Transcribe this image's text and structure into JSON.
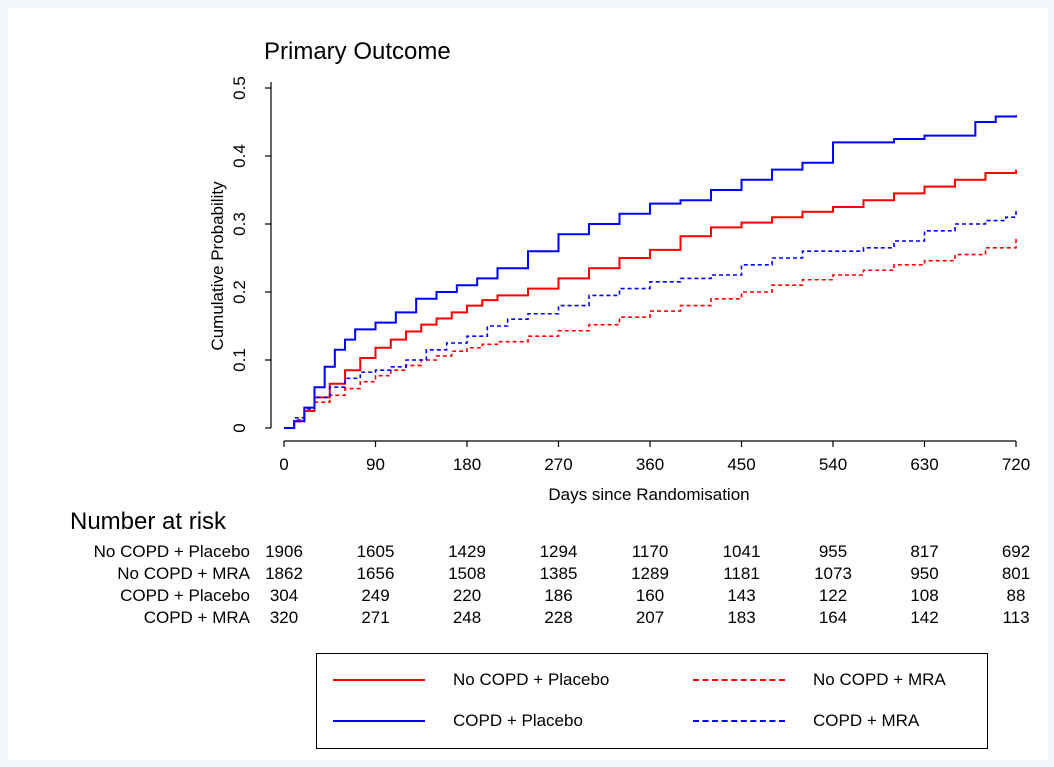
{
  "chart_data": {
    "type": "line",
    "title": "Primary Outcome",
    "xlabel": "Days since Randomisation",
    "ylabel": "Cumulative Probability",
    "xlim": [
      0,
      720
    ],
    "ylim": [
      0,
      0.5
    ],
    "xticks": [
      0,
      90,
      180,
      270,
      360,
      450,
      540,
      630,
      720
    ],
    "yticks": [
      0,
      0.1,
      0.2,
      0.3,
      0.4,
      0.5
    ],
    "ytick_labels": [
      "0",
      "0.1",
      "0.2",
      "0.3",
      "0.4",
      "0.5"
    ],
    "grid": false,
    "legend_position": "bottom",
    "series": [
      {
        "name": "No COPD + Placebo",
        "color": "#ff0000",
        "dashed": false,
        "x": [
          0,
          10,
          20,
          30,
          45,
          60,
          75,
          90,
          105,
          120,
          135,
          150,
          165,
          180,
          195,
          210,
          240,
          270,
          300,
          330,
          360,
          390,
          420,
          450,
          480,
          510,
          540,
          570,
          600,
          630,
          660,
          690,
          720
        ],
        "y": [
          0,
          0.01,
          0.025,
          0.045,
          0.065,
          0.085,
          0.103,
          0.118,
          0.13,
          0.142,
          0.152,
          0.161,
          0.17,
          0.18,
          0.188,
          0.195,
          0.205,
          0.22,
          0.235,
          0.25,
          0.262,
          0.282,
          0.295,
          0.302,
          0.31,
          0.318,
          0.325,
          0.335,
          0.345,
          0.355,
          0.365,
          0.375,
          0.38
        ]
      },
      {
        "name": "No COPD + MRA",
        "color": "#ff0000",
        "dashed": true,
        "x": [
          0,
          10,
          20,
          30,
          45,
          60,
          75,
          90,
          105,
          120,
          135,
          150,
          165,
          180,
          195,
          210,
          240,
          270,
          300,
          330,
          360,
          390,
          420,
          450,
          480,
          510,
          540,
          570,
          600,
          630,
          660,
          690,
          720
        ],
        "y": [
          0,
          0.012,
          0.025,
          0.038,
          0.048,
          0.058,
          0.068,
          0.077,
          0.085,
          0.092,
          0.1,
          0.106,
          0.113,
          0.118,
          0.123,
          0.127,
          0.135,
          0.143,
          0.152,
          0.163,
          0.172,
          0.18,
          0.19,
          0.2,
          0.21,
          0.218,
          0.225,
          0.232,
          0.24,
          0.246,
          0.255,
          0.265,
          0.278
        ]
      },
      {
        "name": "COPD + Placebo",
        "color": "#0000ff",
        "dashed": false,
        "x": [
          0,
          10,
          20,
          30,
          40,
          50,
          60,
          70,
          90,
          110,
          130,
          150,
          170,
          190,
          210,
          240,
          270,
          300,
          330,
          360,
          390,
          420,
          450,
          480,
          510,
          540,
          570,
          600,
          630,
          660,
          680,
          700,
          720
        ],
        "y": [
          0,
          0.01,
          0.03,
          0.06,
          0.09,
          0.115,
          0.13,
          0.145,
          0.155,
          0.17,
          0.19,
          0.2,
          0.21,
          0.22,
          0.235,
          0.26,
          0.285,
          0.3,
          0.315,
          0.33,
          0.335,
          0.35,
          0.365,
          0.38,
          0.39,
          0.42,
          0.42,
          0.425,
          0.43,
          0.43,
          0.45,
          0.458,
          0.46
        ]
      },
      {
        "name": "COPD + MRA",
        "color": "#0000ff",
        "dashed": true,
        "x": [
          0,
          10,
          20,
          30,
          45,
          60,
          75,
          90,
          105,
          120,
          140,
          160,
          180,
          200,
          220,
          240,
          270,
          300,
          330,
          360,
          390,
          420,
          450,
          480,
          510,
          540,
          570,
          600,
          630,
          660,
          690,
          710,
          720
        ],
        "y": [
          0,
          0.015,
          0.028,
          0.045,
          0.06,
          0.073,
          0.082,
          0.085,
          0.09,
          0.1,
          0.115,
          0.125,
          0.135,
          0.15,
          0.16,
          0.168,
          0.18,
          0.195,
          0.205,
          0.215,
          0.22,
          0.225,
          0.24,
          0.25,
          0.26,
          0.26,
          0.265,
          0.275,
          0.29,
          0.3,
          0.305,
          0.31,
          0.32
        ]
      }
    ]
  },
  "risk_table": {
    "title": "Number at risk",
    "rows": [
      {
        "label": "No COPD + Placebo",
        "values": [
          "1906",
          "1605",
          "1429",
          "1294",
          "1170",
          "1041",
          "955",
          "817",
          "692"
        ]
      },
      {
        "label": "No COPD + MRA",
        "values": [
          "1862",
          "1656",
          "1508",
          "1385",
          "1289",
          "1181",
          "1073",
          "950",
          "801"
        ]
      },
      {
        "label": "COPD + Placebo",
        "values": [
          "304",
          "249",
          "220",
          "186",
          "160",
          "143",
          "122",
          "108",
          "88"
        ]
      },
      {
        "label": "COPD + MRA",
        "values": [
          "320",
          "271",
          "248",
          "228",
          "207",
          "183",
          "164",
          "142",
          "113"
        ]
      }
    ]
  }
}
